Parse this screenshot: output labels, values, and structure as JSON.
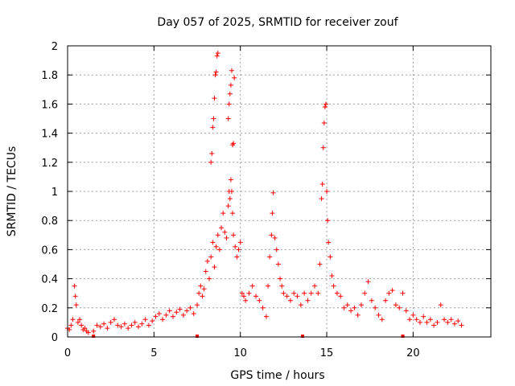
{
  "chart_data": {
    "type": "scatter",
    "title": "Day 057 of 2025, SRMTID for receiver zouf",
    "xlabel": "GPS time / hours",
    "ylabel": "SRMTID / TECUs",
    "xlim": [
      0,
      24.5
    ],
    "ylim": [
      0,
      2
    ],
    "xticks": [
      0,
      5,
      10,
      15,
      20
    ],
    "yticks": [
      0,
      0.2,
      0.4,
      0.6,
      0.8,
      1,
      1.2,
      1.4,
      1.6,
      1.8,
      2
    ],
    "grid": true,
    "colors": {
      "series": "#ff0000",
      "grid": "#a0a0a0"
    },
    "marker": "plus",
    "series": [
      {
        "name": "SRMTID",
        "points": [
          [
            0.0,
            0.06
          ],
          [
            0.1,
            0.05
          ],
          [
            0.2,
            0.08
          ],
          [
            0.3,
            0.12
          ],
          [
            0.4,
            0.35
          ],
          [
            0.45,
            0.28
          ],
          [
            0.5,
            0.22
          ],
          [
            0.6,
            0.1
          ],
          [
            0.7,
            0.12
          ],
          [
            0.8,
            0.08
          ],
          [
            0.9,
            0.05
          ],
          [
            1.0,
            0.06
          ],
          [
            1.1,
            0.04
          ],
          [
            1.2,
            0.03
          ],
          [
            1.5,
            0.04
          ],
          [
            1.7,
            0.08
          ],
          [
            1.9,
            0.07
          ],
          [
            2.1,
            0.09
          ],
          [
            2.3,
            0.06
          ],
          [
            2.5,
            0.1
          ],
          [
            2.7,
            0.12
          ],
          [
            2.9,
            0.08
          ],
          [
            3.1,
            0.07
          ],
          [
            3.3,
            0.09
          ],
          [
            3.5,
            0.06
          ],
          [
            3.7,
            0.08
          ],
          [
            3.9,
            0.1
          ],
          [
            4.1,
            0.07
          ],
          [
            4.3,
            0.09
          ],
          [
            4.5,
            0.12
          ],
          [
            4.7,
            0.08
          ],
          [
            4.9,
            0.11
          ],
          [
            5.1,
            0.14
          ],
          [
            5.3,
            0.16
          ],
          [
            5.5,
            0.12
          ],
          [
            5.7,
            0.15
          ],
          [
            5.9,
            0.18
          ],
          [
            6.1,
            0.14
          ],
          [
            6.3,
            0.17
          ],
          [
            6.5,
            0.19
          ],
          [
            6.7,
            0.15
          ],
          [
            6.9,
            0.18
          ],
          [
            7.1,
            0.2
          ],
          [
            7.3,
            0.16
          ],
          [
            7.5,
            0.22
          ],
          [
            7.6,
            0.3
          ],
          [
            7.7,
            0.35
          ],
          [
            7.8,
            0.28
          ],
          [
            7.9,
            0.33
          ],
          [
            8.0,
            0.45
          ],
          [
            8.1,
            0.52
          ],
          [
            8.2,
            0.4
          ],
          [
            8.3,
            0.55
          ],
          [
            8.4,
            0.65
          ],
          [
            8.5,
            0.48
          ],
          [
            8.6,
            0.62
          ],
          [
            8.7,
            0.7
          ],
          [
            8.8,
            0.6
          ],
          [
            8.9,
            0.75
          ],
          [
            9.0,
            0.85
          ],
          [
            9.1,
            0.72
          ],
          [
            9.2,
            0.68
          ],
          [
            9.3,
            0.9
          ],
          [
            9.35,
            1.0
          ],
          [
            9.4,
            0.95
          ],
          [
            9.45,
            1.08
          ],
          [
            9.5,
            1.0
          ],
          [
            9.55,
            0.85
          ],
          [
            9.6,
            0.7
          ],
          [
            9.7,
            0.62
          ],
          [
            9.8,
            0.55
          ],
          [
            9.9,
            0.6
          ],
          [
            10.0,
            0.65
          ],
          [
            10.1,
            0.3
          ],
          [
            10.2,
            0.28
          ],
          [
            8.3,
            1.2
          ],
          [
            8.35,
            1.26
          ],
          [
            8.4,
            1.44
          ],
          [
            8.45,
            1.5
          ],
          [
            8.5,
            1.64
          ],
          [
            8.55,
            1.8
          ],
          [
            8.6,
            1.82
          ],
          [
            8.65,
            1.93
          ],
          [
            8.7,
            1.95
          ],
          [
            9.3,
            1.5
          ],
          [
            9.35,
            1.6
          ],
          [
            9.4,
            1.67
          ],
          [
            9.45,
            1.73
          ],
          [
            9.5,
            1.83
          ],
          [
            9.55,
            1.32
          ],
          [
            9.6,
            1.33
          ],
          [
            9.65,
            1.78
          ],
          [
            10.3,
            0.25
          ],
          [
            10.5,
            0.3
          ],
          [
            10.7,
            0.35
          ],
          [
            10.9,
            0.28
          ],
          [
            11.1,
            0.25
          ],
          [
            11.3,
            0.2
          ],
          [
            11.5,
            0.14
          ],
          [
            11.6,
            0.35
          ],
          [
            11.7,
            0.55
          ],
          [
            11.8,
            0.7
          ],
          [
            11.85,
            0.85
          ],
          [
            11.9,
            0.99
          ],
          [
            12.0,
            0.68
          ],
          [
            12.1,
            0.6
          ],
          [
            12.2,
            0.5
          ],
          [
            12.3,
            0.4
          ],
          [
            12.4,
            0.35
          ],
          [
            12.5,
            0.3
          ],
          [
            12.7,
            0.28
          ],
          [
            12.9,
            0.25
          ],
          [
            13.1,
            0.3
          ],
          [
            13.3,
            0.28
          ],
          [
            13.5,
            0.22
          ],
          [
            13.7,
            0.3
          ],
          [
            13.9,
            0.25
          ],
          [
            14.1,
            0.3
          ],
          [
            14.3,
            0.35
          ],
          [
            14.5,
            0.3
          ],
          [
            14.6,
            0.5
          ],
          [
            14.7,
            0.95
          ],
          [
            14.75,
            1.05
          ],
          [
            14.8,
            1.3
          ],
          [
            14.85,
            1.47
          ],
          [
            14.9,
            1.58
          ],
          [
            14.95,
            1.6
          ],
          [
            15.0,
            1.0
          ],
          [
            15.05,
            0.8
          ],
          [
            15.1,
            0.65
          ],
          [
            15.2,
            0.55
          ],
          [
            15.3,
            0.42
          ],
          [
            15.4,
            0.35
          ],
          [
            15.6,
            0.3
          ],
          [
            15.8,
            0.28
          ],
          [
            16.0,
            0.2
          ],
          [
            16.2,
            0.22
          ],
          [
            16.4,
            0.18
          ],
          [
            16.6,
            0.2
          ],
          [
            16.8,
            0.15
          ],
          [
            17.0,
            0.22
          ],
          [
            17.2,
            0.3
          ],
          [
            17.4,
            0.38
          ],
          [
            17.6,
            0.25
          ],
          [
            17.8,
            0.2
          ],
          [
            18.0,
            0.15
          ],
          [
            18.2,
            0.12
          ],
          [
            18.4,
            0.25
          ],
          [
            18.6,
            0.3
          ],
          [
            18.8,
            0.32
          ],
          [
            19.0,
            0.22
          ],
          [
            19.2,
            0.2
          ],
          [
            19.4,
            0.3
          ],
          [
            19.6,
            0.18
          ],
          [
            19.8,
            0.12
          ],
          [
            20.0,
            0.15
          ],
          [
            20.2,
            0.12
          ],
          [
            20.4,
            0.1
          ],
          [
            20.6,
            0.14
          ],
          [
            20.8,
            0.1
          ],
          [
            21.0,
            0.12
          ],
          [
            21.2,
            0.08
          ],
          [
            21.4,
            0.1
          ],
          [
            21.6,
            0.22
          ],
          [
            21.8,
            0.12
          ],
          [
            22.0,
            0.1
          ],
          [
            22.2,
            0.12
          ],
          [
            22.4,
            0.09
          ],
          [
            22.6,
            0.11
          ],
          [
            22.8,
            0.08
          ]
        ]
      }
    ],
    "gap_markers_x": [
      1.5,
      7.5,
      13.6,
      19.4
    ]
  }
}
